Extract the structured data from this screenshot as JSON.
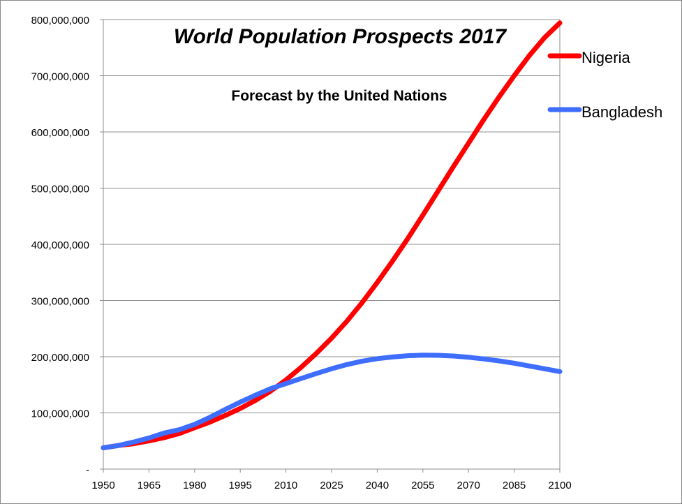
{
  "chart_data": {
    "type": "line",
    "title": "World Population Prospects 2017",
    "subtitle": "Forecast by the United Nations",
    "xlabel": "",
    "ylabel": "",
    "xlim": [
      1950,
      2100
    ],
    "ylim": [
      0,
      800000000
    ],
    "x_ticks": [
      "1950",
      "1965",
      "1980",
      "1995",
      "2010",
      "2025",
      "2040",
      "2055",
      "2070",
      "2085",
      "2100"
    ],
    "y_ticks": [
      "-",
      "100,000,000",
      "200,000,000",
      "300,000,000",
      "400,000,000",
      "500,000,000",
      "600,000,000",
      "700,000,000",
      "800,000,000"
    ],
    "grid": true,
    "legend_position": "top-right",
    "x": [
      1950,
      1955,
      1960,
      1965,
      1970,
      1975,
      1980,
      1985,
      1990,
      1995,
      2000,
      2005,
      2010,
      2015,
      2020,
      2025,
      2030,
      2035,
      2040,
      2045,
      2050,
      2055,
      2060,
      2065,
      2070,
      2075,
      2080,
      2085,
      2090,
      2095,
      2100
    ],
    "series": [
      {
        "name": "Nigeria",
        "color": "#ff0000",
        "values": [
          37900000,
          42000000,
          45200000,
          50200000,
          55900000,
          63400000,
          73700000,
          83600000,
          95300000,
          108000000,
          122400000,
          138900000,
          158600000,
          181100000,
          206000000,
          233000000,
          263000000,
          296000000,
          332000000,
          370000000,
          410000000,
          452000000,
          495000000,
          538000000,
          580000000,
          622000000,
          662000000,
          700000000,
          736000000,
          768000000,
          794000000
        ]
      },
      {
        "name": "Bangladesh",
        "color": "#3f6eff",
        "values": [
          37900000,
          42000000,
          48200000,
          55400000,
          64200000,
          70200000,
          79600000,
          92100000,
          106000000,
          119300000,
          131600000,
          143200000,
          152100000,
          161200000,
          170000000,
          178500000,
          186000000,
          192000000,
          196500000,
          199500000,
          201800000,
          202900000,
          202500000,
          201200000,
          199000000,
          196000000,
          192500000,
          188400000,
          183500000,
          178500000,
          173500000
        ]
      }
    ]
  }
}
